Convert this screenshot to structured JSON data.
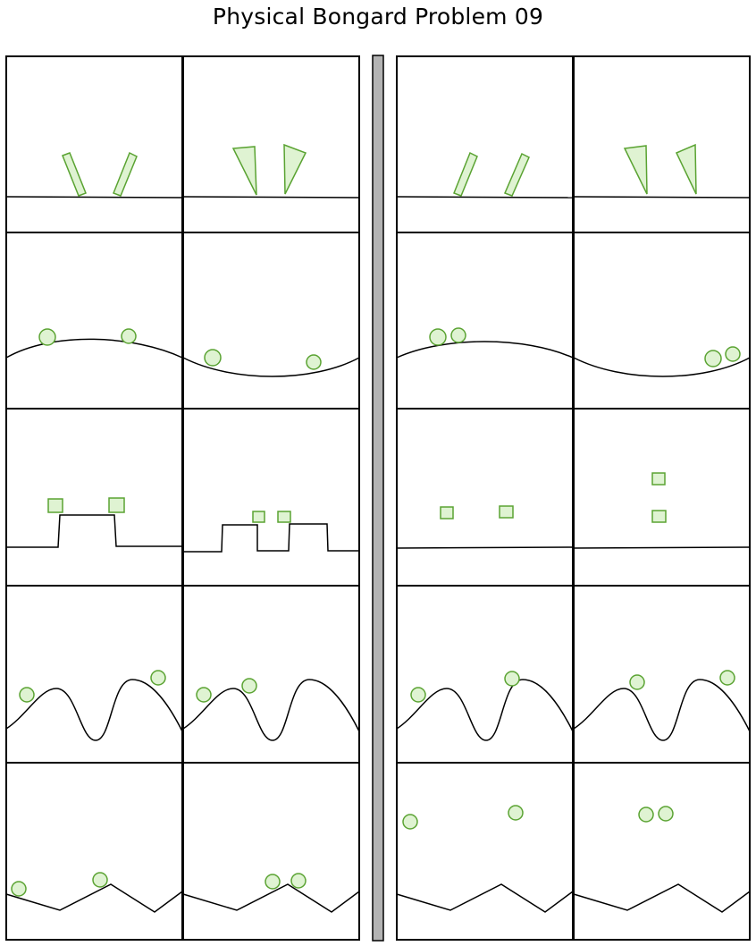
{
  "title": "Physical Bongard Problem 09",
  "colors": {
    "shape_fill": "#dff3d2",
    "shape_stroke": "#5aa332",
    "divider_fill": "#b3b3b3",
    "frame_stroke": "#000000"
  },
  "layout": "two groups of 2 columns x 5 rows of scene panels separated by a gray vertical bar",
  "groups": [
    {
      "side": "left",
      "rows": [
        [
          "two tilted rectangles standing on a flat ground line",
          "two tall triangles standing on their points on a flat ground line"
        ],
        [
          "two circles on a hill-shaped curve",
          "two circles in a valley-shaped curve"
        ],
        [
          "two squares on a raised block ground",
          "two small squares on a stepped block ground"
        ],
        [
          "two circles on a double-hill wavy ground",
          "two circles on a double-hill wavy ground"
        ],
        [
          "two circles on a zigzag ground",
          "two circles on a zigzag ground"
        ]
      ]
    },
    {
      "side": "right",
      "rows": [
        [
          "two tilted rectangles standing on a flat ground line",
          "two tall triangles standing on their points on a flat ground line"
        ],
        [
          "two touching circles on a hill-shaped curve",
          "two touching circles in a valley-shaped curve"
        ],
        [
          "two squares side by side above a flat ground line",
          "two squares stacked vertically above a flat ground line"
        ],
        [
          "two circles on a double-hill wavy ground",
          "two circles on a double-hill wavy ground"
        ],
        [
          "two circles above a zigzag ground",
          "two touching circles above a zigzag ground"
        ]
      ]
    }
  ]
}
